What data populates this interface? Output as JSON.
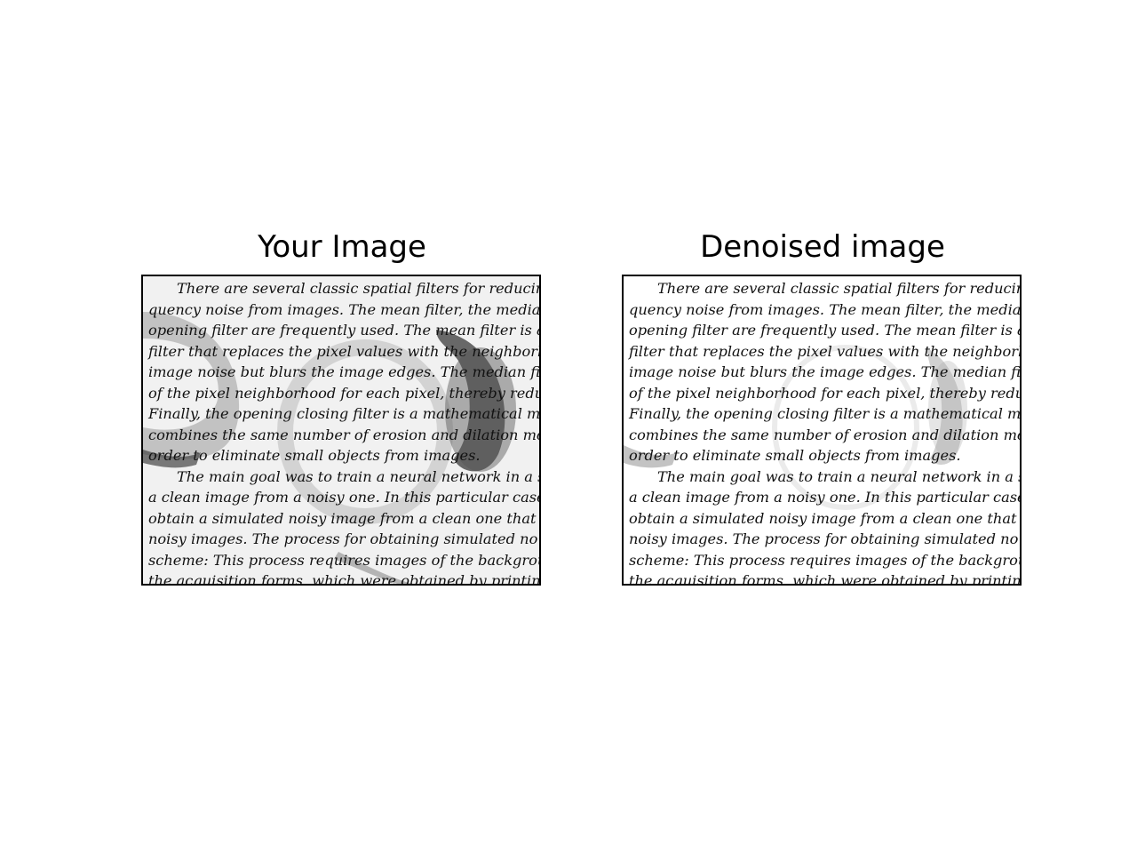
{
  "panels": [
    {
      "title": "Your Image",
      "variant": "noisy"
    },
    {
      "title": "Denoised image",
      "variant": "clean"
    }
  ],
  "document_lines": [
    {
      "text": "There are several classic spatial filters for reducing o",
      "indent": true
    },
    {
      "text": "quency noise from images.  The mean filter, the media",
      "indent": false
    },
    {
      "text": "opening filter are frequently used.  The mean filter is a",
      "indent": false
    },
    {
      "text": "filter that replaces the pixel values with the neighborhoo",
      "indent": false
    },
    {
      "text": "image noise but blurs the image edges.  The median filte",
      "indent": false
    },
    {
      "text": "of the pixel neighborhood for each pixel, thereby reduc",
      "indent": false
    },
    {
      "text": "Finally, the opening closing filter is a mathematical m",
      "indent": false
    },
    {
      "text": "combines the same number of erosion and dilation morp",
      "indent": false
    },
    {
      "text": "order to eliminate small objects from images.",
      "indent": false
    },
    {
      "text": "The main goal was to train a neural network in a supe",
      "indent": true
    },
    {
      "text": "a clean image from a noisy one.  In this particular case,",
      "indent": false
    },
    {
      "text": "obtain a simulated noisy image from a clean one that",
      "indent": false
    },
    {
      "text": "noisy images.  The process for obtaining simulated no",
      "indent": false
    },
    {
      "text": "scheme:  This process requires images of the backgrou",
      "indent": false
    },
    {
      "text": "the acquisition forms, which were obtained by printing",
      "indent": false
    }
  ]
}
